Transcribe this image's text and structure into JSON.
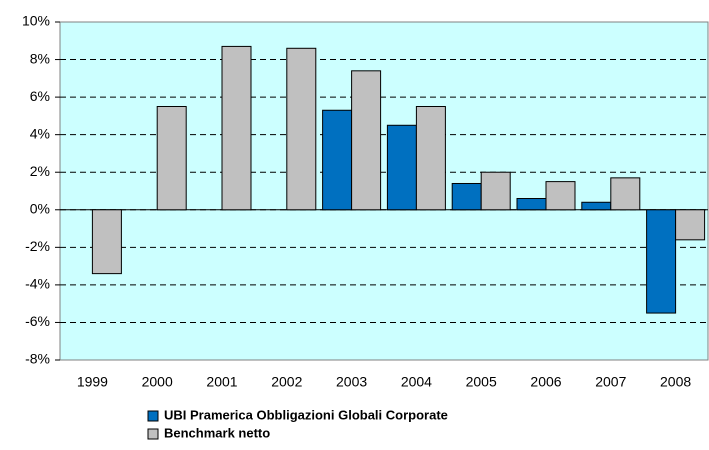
{
  "chart_data": {
    "type": "bar",
    "categories": [
      "1999",
      "2000",
      "2001",
      "2002",
      "2003",
      "2004",
      "2005",
      "2006",
      "2007",
      "2008"
    ],
    "series": [
      {
        "name": "UBI Pramerica Obbligazioni Globali Corporate",
        "color": "#0070c0",
        "values": [
          null,
          null,
          null,
          null,
          5.3,
          4.5,
          1.4,
          0.6,
          0.4,
          -5.5
        ]
      },
      {
        "name": "Benchmark netto",
        "color": "#c0c0c0",
        "values": [
          -3.4,
          5.5,
          8.7,
          8.6,
          7.4,
          5.5,
          2.0,
          1.5,
          1.7,
          -1.6
        ]
      }
    ],
    "ylim": [
      -8,
      10
    ],
    "yticks": [
      {
        "value": -8,
        "label": "-8%"
      },
      {
        "value": -6,
        "label": "-6%"
      },
      {
        "value": -4,
        "label": "-4%"
      },
      {
        "value": -2,
        "label": "-2%"
      },
      {
        "value": 0,
        "label": "0%"
      },
      {
        "value": 2,
        "label": "2%"
      },
      {
        "value": 4,
        "label": "4%"
      },
      {
        "value": 6,
        "label": "6%"
      },
      {
        "value": 8,
        "label": "8%"
      },
      {
        "value": 10,
        "label": "10%"
      }
    ],
    "grid": true,
    "background": "#ccffff",
    "legend": "bottom"
  }
}
